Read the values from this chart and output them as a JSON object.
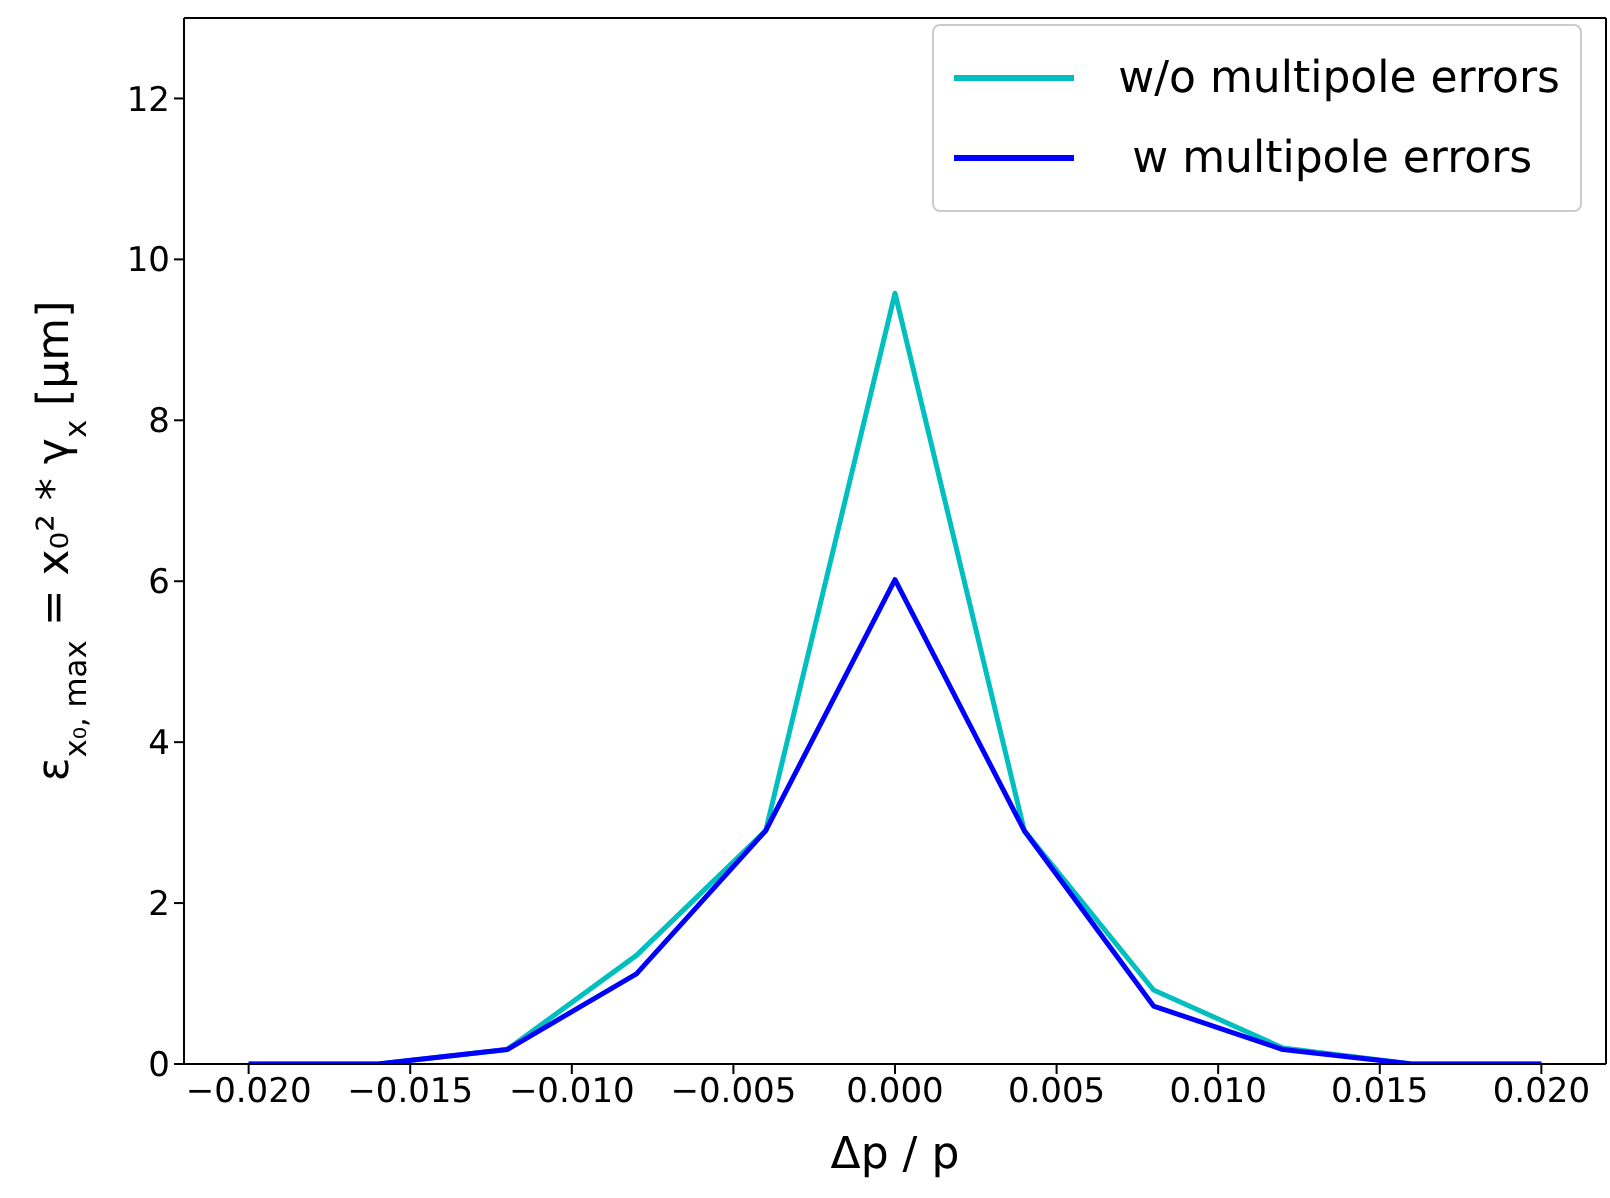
{
  "chart_data": {
    "type": "line",
    "xlabel": "Δp / p",
    "ylabel": "ε$_{x₀, max}$ = x₀² * γ$_{x}$ [μm]",
    "x": [
      -0.02,
      -0.016,
      -0.012,
      -0.008,
      -0.004,
      0,
      0.004,
      0.008,
      0.012,
      0.016,
      0.02
    ],
    "series": [
      {
        "name": "w/o multipole errors",
        "color": "#00bfbf",
        "values": [
          0,
          0,
          0.18,
          1.35,
          2.9,
          9.58,
          2.9,
          0.92,
          0.2,
          0,
          0
        ]
      },
      {
        "name": " w multipole errors",
        "color": "#0000ff",
        "values": [
          0,
          0,
          0.18,
          1.12,
          2.9,
          6.02,
          2.9,
          0.72,
          0.18,
          0,
          0
        ]
      }
    ],
    "xlim": [
      -0.022,
      0.022
    ],
    "ylim": [
      0,
      13
    ],
    "xticks": [
      {
        "value": -0.02,
        "label": "−0.020"
      },
      {
        "value": -0.015,
        "label": "−0.015"
      },
      {
        "value": -0.01,
        "label": "−0.010"
      },
      {
        "value": -0.005,
        "label": "−0.005"
      },
      {
        "value": 0,
        "label": "0.000"
      },
      {
        "value": 0.005,
        "label": "0.005"
      },
      {
        "value": 0.01,
        "label": "0.010"
      },
      {
        "value": 0.015,
        "label": "0.015"
      },
      {
        "value": 0.02,
        "label": "0.020"
      }
    ],
    "yticks": [
      0,
      2,
      4,
      6,
      8,
      10,
      12
    ],
    "legend": "top right",
    "grid": false,
    "marker": "none",
    "line_style": "solid"
  }
}
